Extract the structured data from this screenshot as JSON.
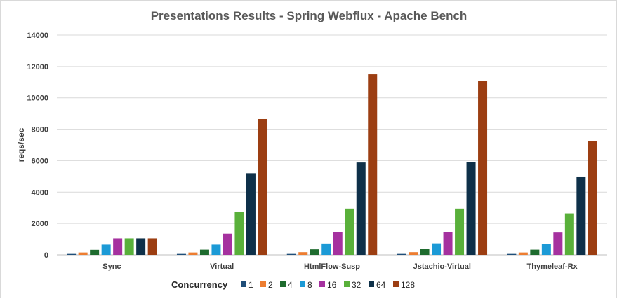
{
  "chart_data": {
    "type": "bar",
    "title": "Presentations Results - Spring Webflux - Apache Bench",
    "xlabel": "",
    "ylabel": "reqs/sec",
    "ylim": [
      0,
      14000
    ],
    "yticks": [
      "0",
      "2000",
      "4000",
      "6000",
      "8000",
      "10000",
      "12000",
      "14000"
    ],
    "grid": true,
    "legend_title": "Concurrency",
    "legend_position": "bottom",
    "categories": [
      "Sync",
      "Virtual",
      "HtmlFlow-Susp",
      "Jstachio-Virtual",
      "Thymeleaf-Rx"
    ],
    "series": [
      {
        "name": "1",
        "color": "#1F4E79",
        "values": [
          60,
          60,
          60,
          60,
          60
        ]
      },
      {
        "name": "2",
        "color": "#ED7D31",
        "values": [
          150,
          150,
          170,
          170,
          150
        ]
      },
      {
        "name": "4",
        "color": "#1E6B2E",
        "values": [
          320,
          330,
          350,
          360,
          330
        ]
      },
      {
        "name": "8",
        "color": "#1C9AD6",
        "values": [
          650,
          650,
          720,
          730,
          680
        ]
      },
      {
        "name": "16",
        "color": "#A5319F",
        "values": [
          1050,
          1350,
          1470,
          1470,
          1420
        ]
      },
      {
        "name": "32",
        "color": "#59B03A",
        "values": [
          1050,
          2720,
          2950,
          2950,
          2650
        ]
      },
      {
        "name": "64",
        "color": "#0E3049",
        "values": [
          1050,
          5200,
          5880,
          5900,
          4950
        ]
      },
      {
        "name": "128",
        "color": "#9C3E12",
        "values": [
          1050,
          8650,
          11500,
          11100,
          7230
        ]
      }
    ]
  }
}
